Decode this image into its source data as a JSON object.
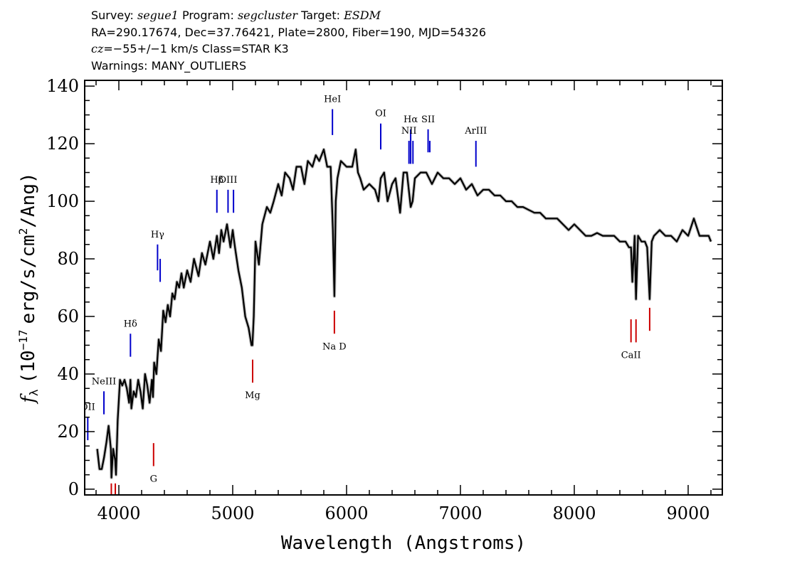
{
  "header": {
    "survey_label": "Survey:",
    "survey": "segue1",
    "program_label": "Program:",
    "program": "segcluster",
    "target_label": "Target:",
    "target": "ESDM",
    "line2": "RA=290.17674, Dec=37.76421, Plate=2800, Fiber=190, MJD=54326",
    "cz_label": "cz",
    "cz_text": "=−55+/−1 km/s Class=STAR K3",
    "warnings": "Warnings: MANY_OUTLIERS"
  },
  "chart_data": {
    "type": "line",
    "title": "",
    "xlabel": "Wavelength (Angstroms)",
    "ylabel_parts": {
      "f": "f",
      "sub": "λ",
      "open": "(10",
      "exp_neg": "−17",
      "unit": "erg/s/cm",
      "sq": "2",
      "close": "/Ang)"
    },
    "xlim": [
      3700,
      9300
    ],
    "ylim": [
      -2,
      142
    ],
    "xticks": [
      4000,
      5000,
      6000,
      7000,
      8000,
      9000
    ],
    "yticks": [
      0,
      20,
      40,
      60,
      80,
      100,
      120,
      140
    ],
    "series": [
      {
        "color": "#000000",
        "x": [
          3810,
          3830,
          3850,
          3870,
          3890,
          3910,
          3930,
          3935,
          3950,
          3968,
          3975,
          3990,
          4010,
          4030,
          4050,
          4070,
          4090,
          4102,
          4110,
          4130,
          4150,
          4170,
          4190,
          4210,
          4230,
          4250,
          4270,
          4290,
          4300,
          4310,
          4330,
          4350,
          4370,
          4390,
          4410,
          4430,
          4450,
          4470,
          4490,
          4510,
          4530,
          4550,
          4570,
          4600,
          4630,
          4660,
          4700,
          4730,
          4760,
          4800,
          4830,
          4861,
          4880,
          4900,
          4920,
          4950,
          4980,
          5000,
          5020,
          5050,
          5080,
          5110,
          5140,
          5165,
          5173,
          5185,
          5200,
          5230,
          5260,
          5300,
          5330,
          5360,
          5400,
          5430,
          5460,
          5500,
          5530,
          5560,
          5600,
          5630,
          5660,
          5700,
          5730,
          5760,
          5800,
          5830,
          5860,
          5880,
          5893,
          5905,
          5920,
          5950,
          6000,
          6050,
          6080,
          6100,
          6120,
          6150,
          6200,
          6250,
          6280,
          6300,
          6330,
          6360,
          6400,
          6430,
          6470,
          6500,
          6530,
          6563,
          6580,
          6600,
          6650,
          6700,
          6750,
          6800,
          6850,
          6900,
          6950,
          7000,
          7050,
          7100,
          7150,
          7200,
          7250,
          7300,
          7350,
          7400,
          7450,
          7500,
          7550,
          7600,
          7650,
          7700,
          7750,
          7800,
          7850,
          7900,
          7950,
          8000,
          8050,
          8100,
          8150,
          8200,
          8250,
          8300,
          8350,
          8400,
          8450,
          8480,
          8498,
          8510,
          8530,
          8542,
          8560,
          8590,
          8620,
          8640,
          8662,
          8680,
          8700,
          8750,
          8800,
          8850,
          8900,
          8950,
          9000,
          9050,
          9100,
          9150,
          9180,
          9200
        ],
        "y": [
          14,
          7,
          7,
          11,
          16,
          22,
          14,
          4,
          14,
          10,
          5,
          24,
          38,
          36,
          38,
          35,
          30,
          38,
          28,
          34,
          32,
          38,
          34,
          28,
          40,
          36,
          30,
          38,
          32,
          44,
          40,
          52,
          48,
          62,
          58,
          64,
          60,
          68,
          66,
          72,
          70,
          75,
          70,
          76,
          72,
          80,
          74,
          82,
          78,
          86,
          80,
          88,
          82,
          90,
          86,
          92,
          84,
          90,
          84,
          76,
          70,
          60,
          56,
          50,
          50,
          60,
          86,
          78,
          92,
          98,
          96,
          100,
          106,
          102,
          110,
          108,
          104,
          112,
          112,
          106,
          114,
          112,
          116,
          114,
          118,
          112,
          112,
          90,
          67,
          100,
          108,
          114,
          112,
          112,
          118,
          110,
          108,
          104,
          106,
          104,
          100,
          108,
          110,
          100,
          106,
          108,
          96,
          110,
          110,
          98,
          100,
          108,
          110,
          110,
          106,
          110,
          108,
          108,
          106,
          108,
          104,
          106,
          102,
          104,
          104,
          102,
          102,
          100,
          100,
          98,
          98,
          97,
          96,
          96,
          94,
          94,
          94,
          92,
          90,
          92,
          90,
          88,
          88,
          89,
          88,
          88,
          88,
          86,
          86,
          84,
          84,
          72,
          88,
          66,
          88,
          86,
          86,
          84,
          66,
          86,
          88,
          90,
          88,
          88,
          86,
          90,
          88,
          94,
          88,
          88,
          88,
          86
        ]
      }
    ],
    "lines": [
      {
        "label": "HeI",
        "wave": 5876,
        "range": [
          123,
          132
        ],
        "color": "#0000cc"
      },
      {
        "label": "OI",
        "wave": 6300,
        "range": [
          118,
          127
        ],
        "color": "#0000cc"
      },
      {
        "label": "NII",
        "wave": 6548,
        "range": [
          113,
          121
        ],
        "color": "#0000cc"
      },
      {
        "label": "Hα",
        "wave": 6563,
        "range": [
          113,
          125
        ],
        "color": "#0000cc"
      },
      {
        "label": "NII",
        "wave": 6583,
        "range": [
          113,
          121
        ],
        "color": "#0000cc"
      },
      {
        "label": "SII",
        "wave": 6716,
        "range": [
          117,
          125
        ],
        "color": "#0000cc"
      },
      {
        "label": "SII",
        "wave": 6731,
        "range": [
          117,
          121
        ],
        "color": "#0000cc"
      },
      {
        "label": "ArIII",
        "wave": 7136,
        "range": [
          112,
          121
        ],
        "color": "#0000cc"
      },
      {
        "label": "Hβ",
        "wave": 4861,
        "range": [
          96,
          104
        ],
        "color": "#0000cc"
      },
      {
        "label": "OIII",
        "wave": 4959,
        "range": [
          96,
          104
        ],
        "color": "#0000cc"
      },
      {
        "label": "OIII",
        "wave": 5007,
        "range": [
          96,
          104
        ],
        "color": "#0000cc"
      },
      {
        "label": "Hγ",
        "wave": 4340,
        "range": [
          76,
          85
        ],
        "color": "#0000cc"
      },
      {
        "label": "OIII",
        "wave": 4363,
        "range": [
          72,
          80
        ],
        "color": "#0000cc"
      },
      {
        "label": "Hδ",
        "wave": 4102,
        "range": [
          46,
          54
        ],
        "color": "#0000cc"
      },
      {
        "label": "NeIII",
        "wave": 3869,
        "range": [
          26,
          34
        ],
        "color": "#0000cc"
      },
      {
        "label": "OII",
        "wave": 3727,
        "range": [
          17,
          25
        ],
        "color": "#0000cc"
      },
      {
        "label": "Na D",
        "wave": 5893,
        "range": [
          54,
          62
        ],
        "color": "#cc0000"
      },
      {
        "label": "Mg",
        "wave": 5175,
        "range": [
          37,
          45
        ],
        "color": "#cc0000"
      },
      {
        "label": "G",
        "wave": 4305,
        "range": [
          8,
          16
        ],
        "color": "#cc0000"
      },
      {
        "label": "CaII",
        "wave": 8498,
        "range": [
          51,
          59
        ],
        "color": "#cc0000"
      },
      {
        "label": "CaII",
        "wave": 8542,
        "range": [
          51,
          59
        ],
        "color": "#cc0000"
      },
      {
        "label": "CaII",
        "wave": 8662,
        "range": [
          55,
          63
        ],
        "color": "#cc0000"
      },
      {
        "label": "",
        "wave": 3934,
        "range": [
          -2,
          2
        ],
        "color": "#cc0000"
      },
      {
        "label": "",
        "wave": 3969,
        "range": [
          -2,
          2
        ],
        "color": "#cc0000"
      }
    ]
  }
}
